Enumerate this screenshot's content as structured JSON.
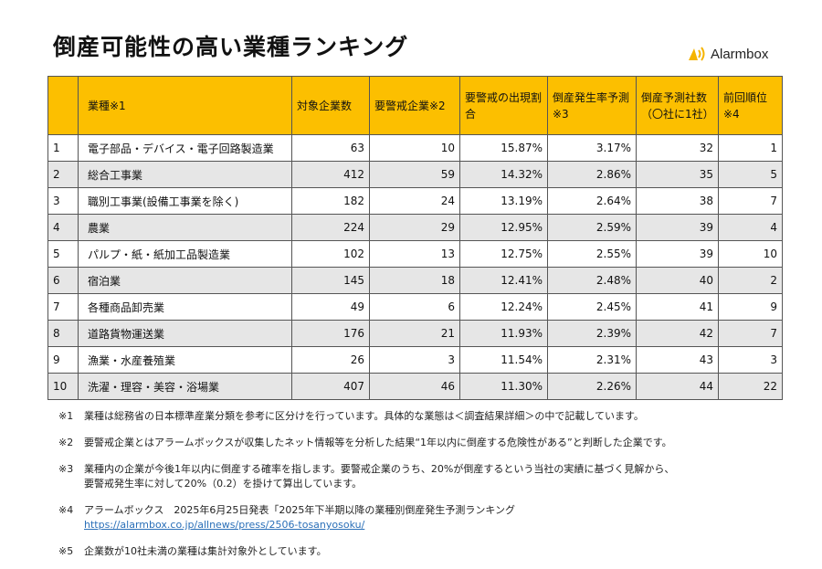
{
  "title": "倒産可能性の高い業種ランキング",
  "logo": {
    "text": "Alarmbox",
    "color": "#f5b400"
  },
  "header_color": "#fcbf00",
  "table": {
    "headers": [
      "",
      "業種※1",
      "対象企業数",
      "要警戒企業※2",
      "要警戒の出現割合",
      "倒産発生率予測※3",
      "倒産予測社数（〇社に1社）",
      "前回順位※4"
    ],
    "rows": [
      [
        "1",
        "電子部品・デバイス・電子回路製造業",
        "63",
        "10",
        "15.87%",
        "3.17%",
        "32",
        "1"
      ],
      [
        "2",
        "総合工事業",
        "412",
        "59",
        "14.32%",
        "2.86%",
        "35",
        "5"
      ],
      [
        "3",
        "職別工事業(設備工事業を除く)",
        "182",
        "24",
        "13.19%",
        "2.64%",
        "38",
        "7"
      ],
      [
        "4",
        "農業",
        "224",
        "29",
        "12.95%",
        "2.59%",
        "39",
        "4"
      ],
      [
        "5",
        "パルプ・紙・紙加工品製造業",
        "102",
        "13",
        "12.75%",
        "2.55%",
        "39",
        "10"
      ],
      [
        "6",
        "宿泊業",
        "145",
        "18",
        "12.41%",
        "2.48%",
        "40",
        "2"
      ],
      [
        "7",
        "各種商品卸売業",
        "49",
        "6",
        "12.24%",
        "2.45%",
        "41",
        "9"
      ],
      [
        "8",
        "道路貨物運送業",
        "176",
        "21",
        "11.93%",
        "2.39%",
        "42",
        "7"
      ],
      [
        "9",
        "漁業・水産養殖業",
        "26",
        "3",
        "11.54%",
        "2.31%",
        "43",
        "3"
      ],
      [
        "10",
        "洗濯・理容・美容・浴場業",
        "407",
        "46",
        "11.30%",
        "2.26%",
        "44",
        "22"
      ]
    ]
  },
  "notes": [
    {
      "mark": "※1",
      "text": "業種は総務省の日本標準産業分類を参考に区分けを行っています。具体的な業態は＜調査結果詳細＞の中で記載しています。"
    },
    {
      "mark": "※2",
      "text": "要警戒企業とはアラームボックスが収集したネット情報等を分析した結果“1年以内に倒産する危険性がある”と判断した企業です。"
    },
    {
      "mark": "※3",
      "text": "業種内の企業が今後1年以内に倒産する確率を指します。要警戒企業のうち、20%が倒産するという当社の実績に基づく見解から、",
      "text2": "要警戒発生率に対して20%（0.2）を掛けて算出しています。"
    },
    {
      "mark": "※4",
      "text": "アラームボックス　2025年6月25日発表「2025年下半期以降の業種別倒産発生予測ランキング",
      "link": "https://alarmbox.co.jp/allnews/press/2506-tosanyosoku/"
    },
    {
      "mark": "※5",
      "text": "企業数が10社未満の業種は集計対象外としています。"
    }
  ]
}
